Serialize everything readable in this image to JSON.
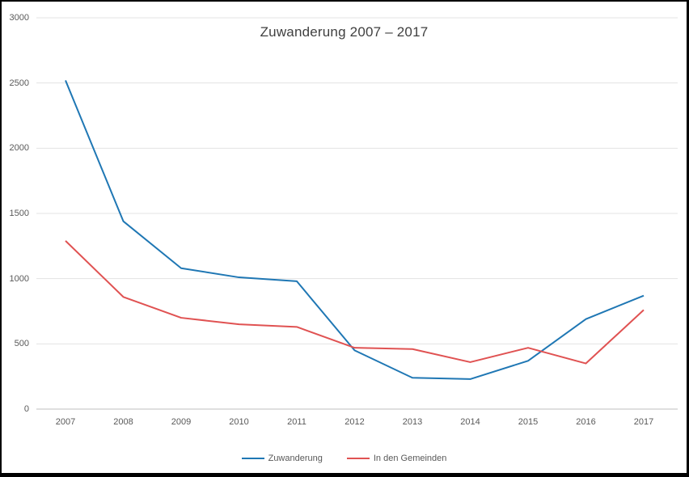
{
  "chart_data": {
    "type": "line",
    "title": "Zuwanderung 2007 – 2017",
    "categories": [
      "2007",
      "2008",
      "2009",
      "2010",
      "2011",
      "2012",
      "2013",
      "2014",
      "2015",
      "2016",
      "2017"
    ],
    "series": [
      {
        "name": "Zuwanderung",
        "color": "#1f77b4",
        "values": [
          2520,
          1440,
          1080,
          1010,
          980,
          450,
          240,
          230,
          370,
          690,
          870
        ]
      },
      {
        "name": "In den Gemeinden",
        "color": "#e05252",
        "values": [
          1290,
          860,
          700,
          650,
          630,
          470,
          460,
          360,
          470,
          350,
          760
        ]
      }
    ],
    "xlabel": "",
    "ylabel": "",
    "ylim": [
      0,
      3000
    ],
    "ytick_step": 500,
    "grid": "horizontal",
    "gridline_color": "#e3e3e3",
    "axis_line_color": "#bfbfbf",
    "legend_position": "bottom"
  }
}
